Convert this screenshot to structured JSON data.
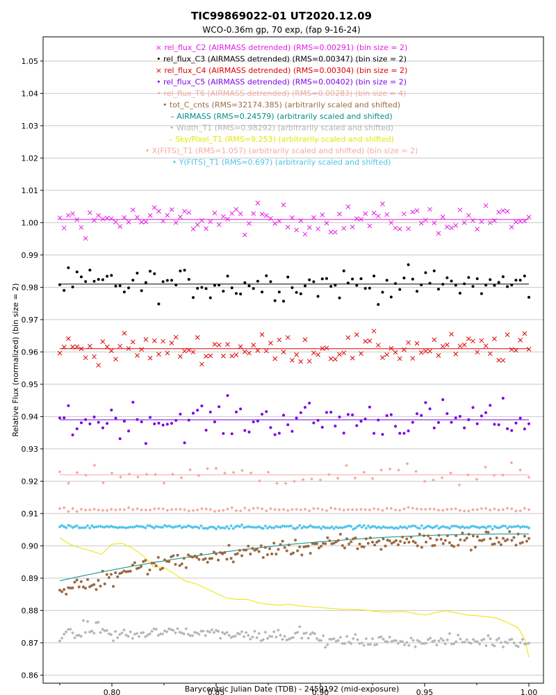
{
  "chart_data": {
    "type": "scatter",
    "title": "TIC99869022-01 UT2020.12.09",
    "subtitle": "WCO-0.36m gp, 70 exp, (fap 9-16-24)",
    "xlabel": "Barycentric Julian Date (TDB) - 2459192 (mid-exposure)",
    "ylabel": "Relative Flux (normalized) (bin size = 2)",
    "xlim": [
      0.767,
      1.007
    ],
    "ylim": [
      0.8575,
      1.0575
    ],
    "x_ticks": [
      "0.80",
      "0.85",
      "0.90",
      "0.95",
      "1.00"
    ],
    "x_tick_values": [
      0.8,
      0.85,
      0.9,
      0.95,
      1.0
    ],
    "y_ticks": [
      "0.86",
      "0.87",
      "0.88",
      "0.89",
      "0.90",
      "0.91",
      "0.92",
      "0.93",
      "0.94",
      "0.95",
      "0.96",
      "0.97",
      "0.98",
      "0.99",
      "1.00",
      "1.01",
      "1.02",
      "1.03",
      "1.04",
      "1.05"
    ],
    "y_tick_values": [
      0.86,
      0.87,
      0.88,
      0.89,
      0.9,
      0.91,
      0.92,
      0.93,
      0.94,
      0.95,
      0.96,
      0.97,
      0.98,
      0.99,
      1.0,
      1.01,
      1.02,
      1.03,
      1.04,
      1.05
    ],
    "grid": true,
    "x_range": [
      0.775,
      1.0
    ],
    "legend": [
      {
        "symbol": "×",
        "text": "rel_flux_C2 (AIRMASS detrended) (RMS=0.00291) (bin size = 2)",
        "color": "#e619e6"
      },
      {
        "symbol": "•",
        "text": "rel_flux_C3 (AIRMASS detrended) (RMS=0.00347) (bin size = 2)",
        "color": "#000000"
      },
      {
        "symbol": "×",
        "text": "rel_flux_C4 (AIRMASS detrended) (RMS=0.00304) (bin size = 2)",
        "color": "#e00000"
      },
      {
        "symbol": "•",
        "text": "rel_flux_C5 (AIRMASS detrended) (RMS=0.00402) (bin size = 2)",
        "color": "#7a00e6"
      },
      {
        "symbol": "•",
        "text": "rel_flux_T6 (AIRMASS detrended) (RMS=0.00283) (bin size = 4)",
        "color": "#f4a8a0"
      },
      {
        "symbol": "•",
        "text": "tot_C_cnts (RMS=32174.385) (arbitrarily scaled and shifted)",
        "color": "#9b6a40"
      },
      {
        "symbol": "–",
        "text": "AIRMASS (RMS=0.24579) (arbitrarily scaled and shifted)",
        "color": "#008b8b"
      },
      {
        "symbol": "•",
        "text": "Width_T1 (RMS=0.98292) (arbitrarily scaled and shifted)",
        "color": "#b4b4b4"
      },
      {
        "symbol": "–",
        "text": "Sky/Pixel_T1 (RMS=9.253) (arbitrarily scaled and shifted)",
        "color": "#e6e600"
      },
      {
        "symbol": "•",
        "text": "X(FITS)_T1 (RMS=1.057) (arbitrarily scaled and shifted) (bin size = 2)",
        "color": "#f4a8a0"
      },
      {
        "symbol": "•",
        "text": "Y(FITS)_T1 (RMS=0.697) (arbitrarily scaled and shifted)",
        "color": "#4fc3e8"
      }
    ],
    "series": [
      {
        "name": "rel_flux_C2",
        "color": "#e619e6",
        "marker": "x",
        "baseline": 1.001,
        "spread": 0.0032,
        "fitline": 1.001,
        "n": 110
      },
      {
        "name": "rel_flux_C3",
        "color": "#000000",
        "marker": "dot",
        "baseline": 0.981,
        "spread": 0.0035,
        "fitline": 0.981,
        "n": 110
      },
      {
        "name": "rel_flux_C4",
        "color": "#e00000",
        "marker": "x",
        "baseline": 0.961,
        "spread": 0.0032,
        "fitline": 0.961,
        "n": 110
      },
      {
        "name": "rel_flux_C5",
        "color": "#7a00e6",
        "marker": "dot",
        "baseline": 0.939,
        "spread": 0.0042,
        "fitline": 0.939,
        "n": 110
      },
      {
        "name": "rel_flux_T6",
        "color": "#f4a8a0",
        "marker": "diamond",
        "baseline": 0.922,
        "spread": 0.0025,
        "fitline": 0.922,
        "n": 55
      },
      {
        "name": "X(FITS)_T1",
        "color": "#f4a8a0",
        "marker": "diamond",
        "baseline": 0.9112,
        "spread": 0.0004,
        "n": 110
      },
      {
        "name": "Y(FITS)_T1",
        "color": "#4fc3e8",
        "marker": "diamond",
        "baseline": 0.9058,
        "spread": 0.0004,
        "n": 220
      },
      {
        "name": "Width_T1",
        "color": "#b4b4b4",
        "marker": "diamond",
        "baseline": 0.8725,
        "spread": 0.0012,
        "n": 220
      },
      {
        "name": "tot_C_cnts",
        "color": "#9b6a40",
        "marker": "dot",
        "baseline": 0.9,
        "spread": 0.002,
        "n": 220
      }
    ],
    "airmass_curve": {
      "name": "AIRMASS",
      "color": "#008b8b",
      "start": 0.8892,
      "end": 0.9037
    },
    "sky_curve": {
      "name": "Sky/Pixel_T1",
      "color": "#e6e600",
      "x": [
        0.775,
        0.78,
        0.785,
        0.79,
        0.795,
        0.8,
        0.805,
        0.81,
        0.815,
        0.82,
        0.825,
        0.83,
        0.835,
        0.84,
        0.845,
        0.85,
        0.855,
        0.86,
        0.865,
        0.87,
        0.875,
        0.88,
        0.885,
        0.89,
        0.9,
        0.91,
        0.92,
        0.93,
        0.94,
        0.95,
        0.96,
        0.97,
        0.98,
        0.985,
        0.99,
        0.995,
        0.998,
        1.0
      ],
      "y": [
        0.9025,
        0.9,
        0.899,
        0.898,
        0.8975,
        0.9,
        0.901,
        0.899,
        0.897,
        0.894,
        0.893,
        0.891,
        0.889,
        0.8885,
        0.887,
        0.8855,
        0.8845,
        0.884,
        0.883,
        0.8825,
        0.882,
        0.8815,
        0.8818,
        0.881,
        0.8805,
        0.8802,
        0.88,
        0.8798,
        0.8795,
        0.8792,
        0.879,
        0.8788,
        0.878,
        0.877,
        0.8765,
        0.8745,
        0.871,
        0.8655
      ]
    }
  }
}
